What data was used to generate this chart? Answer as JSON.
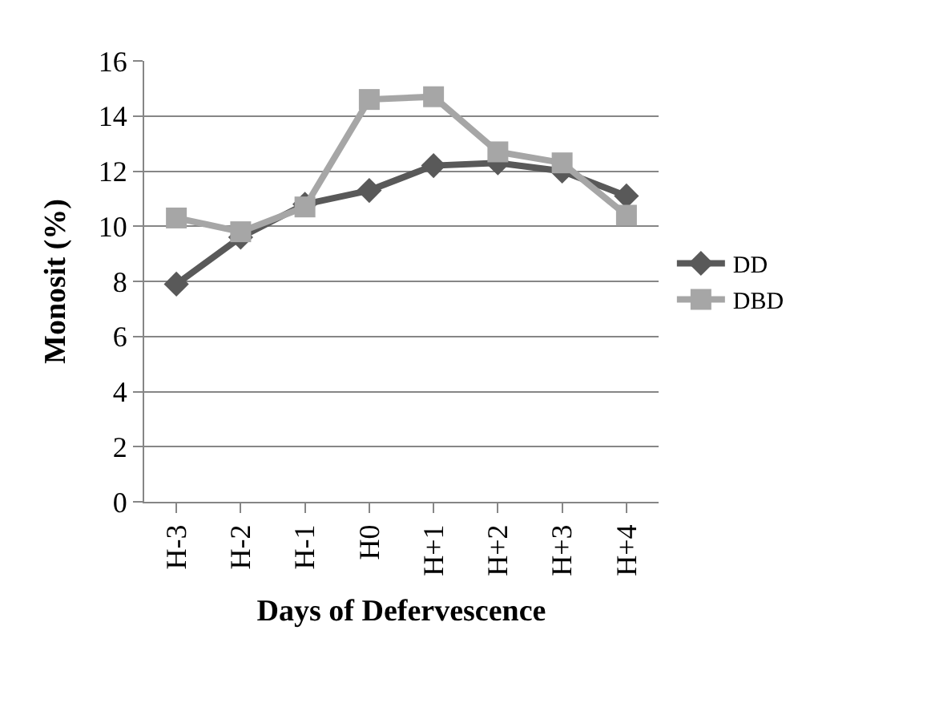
{
  "chart_data": {
    "type": "line",
    "xlabel": "Days of Defervescence",
    "ylabel": "Monosit (%)",
    "categories": [
      "H-3",
      "H-2",
      "H-1",
      "H0",
      "H+1",
      "H+2",
      "H+3",
      "H+4"
    ],
    "series": [
      {
        "name": "DD",
        "color": "#595959",
        "marker": "diamond",
        "values": [
          7.9,
          9.6,
          10.8,
          11.3,
          12.2,
          12.3,
          12.0,
          11.1
        ]
      },
      {
        "name": "DBD",
        "color": "#a6a6a6",
        "marker": "square",
        "values": [
          10.3,
          9.8,
          10.7,
          14.6,
          14.7,
          12.7,
          12.3,
          10.4
        ]
      }
    ],
    "ylim": [
      0,
      16
    ],
    "yticks": [
      0,
      2,
      4,
      6,
      8,
      10,
      12,
      14,
      16
    ],
    "grid": "y",
    "legend": "right",
    "line_style": "solid"
  }
}
